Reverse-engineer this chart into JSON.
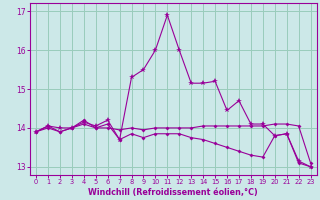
{
  "xlabel": "Windchill (Refroidissement éolien,°C)",
  "xlim": [
    -0.5,
    23.5
  ],
  "ylim": [
    12.8,
    17.2
  ],
  "yticks": [
    13,
    14,
    15,
    16,
    17
  ],
  "xticks": [
    0,
    1,
    2,
    3,
    4,
    5,
    6,
    7,
    8,
    9,
    10,
    11,
    12,
    13,
    14,
    15,
    16,
    17,
    18,
    19,
    20,
    21,
    22,
    23
  ],
  "bg_color": "#cce8e8",
  "line_color": "#990099",
  "grid_color": "#99ccbb",
  "series": {
    "line1": {
      "x": [
        0,
        1,
        2,
        3,
        4,
        5,
        6,
        7,
        8,
        9,
        10,
        11,
        12,
        13,
        14,
        15,
        16,
        17,
        18,
        19,
        20,
        21,
        22,
        23
      ],
      "y": [
        13.9,
        14.05,
        13.9,
        14.0,
        14.1,
        14.0,
        14.0,
        13.95,
        14.0,
        13.95,
        14.0,
        14.0,
        14.0,
        14.0,
        14.05,
        14.05,
        14.05,
        14.05,
        14.05,
        14.05,
        14.1,
        14.1,
        14.05,
        13.1
      ]
    },
    "line2": {
      "x": [
        0,
        1,
        2,
        3,
        4,
        5,
        6,
        7,
        8,
        9,
        10,
        11,
        12,
        13,
        14,
        15,
        16,
        17,
        18,
        19,
        20,
        21,
        22,
        23
      ],
      "y": [
        13.9,
        14.0,
        13.9,
        14.0,
        14.2,
        14.0,
        14.1,
        13.7,
        13.85,
        13.75,
        13.85,
        13.85,
        13.85,
        13.75,
        13.7,
        13.6,
        13.5,
        13.4,
        13.3,
        13.25,
        13.8,
        13.85,
        13.1,
        13.0
      ]
    },
    "line3": {
      "x": [
        0,
        1,
        2,
        3,
        4,
        5,
        6,
        7,
        8,
        9,
        10,
        11,
        12,
        13,
        14,
        15,
        16,
        17,
        18,
        19,
        20,
        21,
        22,
        23
      ],
      "y": [
        13.9,
        14.05,
        14.0,
        14.0,
        14.15,
        14.05,
        14.2,
        13.7,
        15.3,
        15.5,
        16.0,
        16.9,
        16.0,
        15.15,
        15.15,
        15.2,
        14.45,
        14.7,
        14.1,
        14.1,
        13.8,
        13.85,
        13.15,
        13.0
      ]
    }
  }
}
